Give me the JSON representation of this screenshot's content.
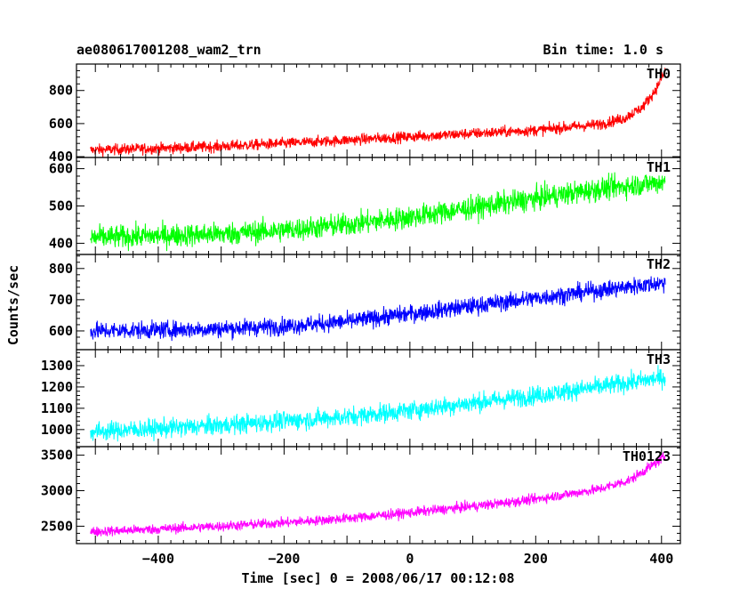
{
  "header": {
    "title": "ae080617001208_wam2_trn",
    "bin_time": "Bin time: 1.0 s"
  },
  "chart_data": {
    "type": "line",
    "xlabel": "Time [sec] 0 = 2008/06/17 00:12:08",
    "ylabel": "Counts/sec",
    "xlim": [
      -530,
      430
    ],
    "x_ticks": [
      -400,
      -200,
      0,
      200,
      400
    ],
    "x_tick_labels": [
      "−400",
      "−200",
      "0",
      "200",
      "400"
    ],
    "x_range": [
      -508,
      406
    ],
    "grid": false,
    "panels": [
      {
        "name": "TH0",
        "color": "#ff0000",
        "ylim": [
          395,
          960
        ],
        "ticks": [
          400,
          600,
          800
        ],
        "noise": 24,
        "trend": [
          [
            -508,
            440
          ],
          [
            -400,
            450
          ],
          [
            -300,
            462
          ],
          [
            -200,
            480
          ],
          [
            -100,
            500
          ],
          [
            0,
            520
          ],
          [
            100,
            540
          ],
          [
            200,
            560
          ],
          [
            300,
            595
          ],
          [
            340,
            630
          ],
          [
            370,
            700
          ],
          [
            390,
            800
          ],
          [
            406,
            920
          ]
        ]
      },
      {
        "name": "TH1",
        "color": "#00ff00",
        "ylim": [
          370,
          630
        ],
        "ticks": [
          400,
          500,
          600
        ],
        "noise": 22,
        "trend": [
          [
            -508,
            415
          ],
          [
            -400,
            420
          ],
          [
            -300,
            425
          ],
          [
            -200,
            435
          ],
          [
            -100,
            450
          ],
          [
            0,
            470
          ],
          [
            100,
            495
          ],
          [
            200,
            520
          ],
          [
            300,
            545
          ],
          [
            406,
            565
          ]
        ]
      },
      {
        "name": "TH2",
        "color": "#0000ff",
        "ylim": [
          540,
          845
        ],
        "ticks": [
          600,
          700,
          800
        ],
        "noise": 20,
        "trend": [
          [
            -508,
            600
          ],
          [
            -400,
            603
          ],
          [
            -300,
            607
          ],
          [
            -200,
            615
          ],
          [
            -100,
            630
          ],
          [
            0,
            655
          ],
          [
            100,
            680
          ],
          [
            200,
            705
          ],
          [
            300,
            730
          ],
          [
            406,
            755
          ]
        ]
      },
      {
        "name": "TH3",
        "color": "#00ffff",
        "ylim": [
          920,
          1375
        ],
        "ticks": [
          1000,
          1100,
          1200,
          1300
        ],
        "noise": 32,
        "trend": [
          [
            -508,
            990
          ],
          [
            -400,
            1005
          ],
          [
            -300,
            1020
          ],
          [
            -200,
            1040
          ],
          [
            -100,
            1060
          ],
          [
            0,
            1090
          ],
          [
            100,
            1125
          ],
          [
            200,
            1160
          ],
          [
            300,
            1200
          ],
          [
            406,
            1245
          ]
        ]
      },
      {
        "name": "TH0123",
        "color": "#ff00ff",
        "ylim": [
          2255,
          3620
        ],
        "ticks": [
          2500,
          3000,
          3500
        ],
        "noise": 50,
        "trend": [
          [
            -508,
            2420
          ],
          [
            -400,
            2460
          ],
          [
            -300,
            2500
          ],
          [
            -200,
            2550
          ],
          [
            -100,
            2610
          ],
          [
            0,
            2690
          ],
          [
            100,
            2780
          ],
          [
            200,
            2880
          ],
          [
            300,
            3020
          ],
          [
            350,
            3150
          ],
          [
            406,
            3480
          ]
        ]
      }
    ]
  }
}
